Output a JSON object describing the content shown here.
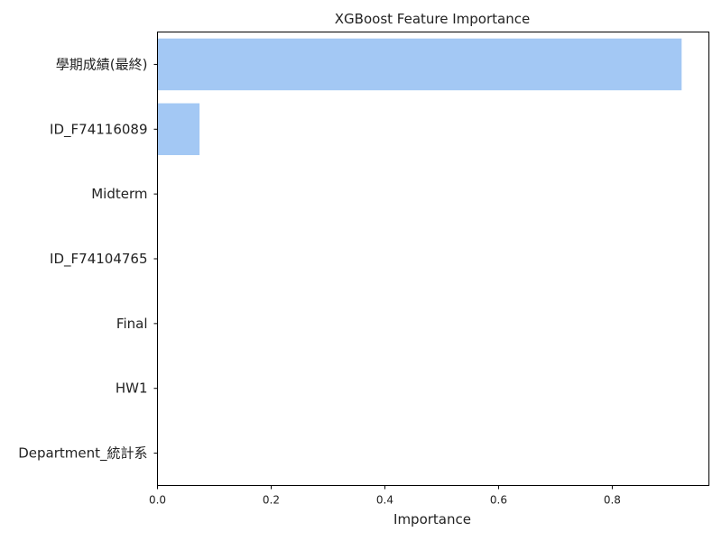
{
  "chart_data": {
    "type": "bar",
    "orientation": "horizontal",
    "title": "XGBoost Feature Importance",
    "xlabel": "Importance",
    "ylabel": "",
    "categories": [
      "學期成績(最終)",
      "ID_F74116089",
      "Midterm",
      "ID_F74104765",
      "Final",
      "HW1",
      "Department_統計系"
    ],
    "values": [
      0.922,
      0.074,
      0.0,
      0.0,
      0.0,
      0.0,
      0.0
    ],
    "xlim": [
      0,
      0.97
    ],
    "xticks": [
      "0.0",
      "0.2",
      "0.4",
      "0.6",
      "0.8"
    ],
    "grid": false,
    "legend": "none",
    "bar_color": "#a3c8f4"
  }
}
